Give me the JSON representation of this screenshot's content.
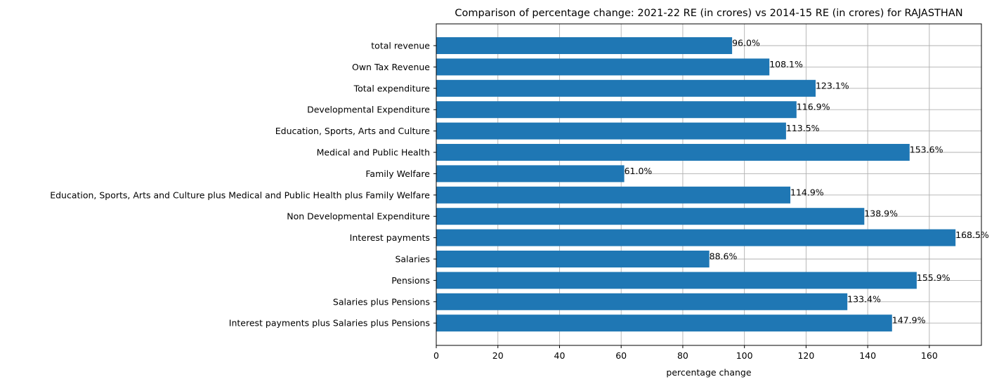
{
  "chart_data": {
    "type": "bar",
    "orientation": "horizontal",
    "title": "Comparison of percentage change: 2021-22 RE (in crores) vs 2014-15 RE (in crores) for RAJASTHAN",
    "xlabel": "percentage change",
    "ylabel": "",
    "xlim": [
      0,
      176.9
    ],
    "xticks": [
      0,
      20,
      40,
      60,
      80,
      100,
      120,
      140,
      160
    ],
    "grid": true,
    "bar_color": "#1f77b4",
    "categories": [
      "total revenue",
      "Own Tax Revenue",
      "Total expenditure",
      "Developmental Expenditure",
      "Education, Sports, Arts and Culture",
      "Medical and Public Health",
      "Family Welfare",
      "Education, Sports, Arts and Culture plus Medical and Public Health plus Family Welfare",
      "Non Developmental Expenditure",
      "Interest payments",
      "Salaries",
      "Pensions",
      "Salaries plus Pensions",
      "Interest payments plus Salaries plus Pensions"
    ],
    "values": [
      96.0,
      108.1,
      123.1,
      116.9,
      113.5,
      153.6,
      61.0,
      114.9,
      138.9,
      168.5,
      88.6,
      155.9,
      133.4,
      147.9
    ],
    "data_labels": [
      "96.0%",
      "108.1%",
      "123.1%",
      "116.9%",
      "113.5%",
      "153.6%",
      "61.0%",
      "114.9%",
      "138.9%",
      "168.5%",
      "88.6%",
      "155.9%",
      "133.4%",
      "147.9%"
    ]
  }
}
